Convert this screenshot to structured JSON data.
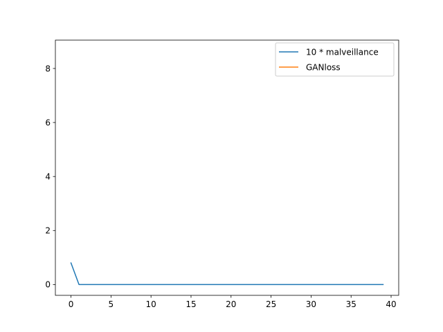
{
  "chart_data": {
    "type": "line",
    "title": "",
    "xlabel": "",
    "ylabel": "",
    "xlim": [
      -1.95,
      40.95
    ],
    "ylim": [
      -0.4,
      9.05
    ],
    "x_ticks": [
      0,
      5,
      10,
      15,
      20,
      25,
      30,
      35,
      40
    ],
    "y_ticks": [
      0,
      2,
      4,
      6,
      8
    ],
    "grid": false,
    "legend_position": "top-right",
    "series": [
      {
        "name": "10 * malveillance",
        "color": "#1f77b4",
        "x": [
          0,
          1,
          2,
          3,
          4,
          5,
          6,
          7,
          8,
          9,
          10,
          11,
          12,
          13,
          14,
          15,
          16,
          17,
          18,
          19,
          20,
          21,
          22,
          23,
          24,
          25,
          26,
          27,
          28,
          29,
          30,
          31,
          32,
          33,
          34,
          35,
          36,
          37,
          38,
          39
        ],
        "y": [
          0.8,
          0,
          0,
          0,
          0,
          0,
          0,
          0,
          0,
          0,
          0,
          0,
          0,
          0,
          0,
          0,
          0,
          0,
          0,
          0,
          0,
          0,
          0,
          0,
          0,
          0,
          0,
          0,
          0,
          0,
          0,
          0,
          0,
          0,
          0,
          0,
          0,
          0,
          0,
          0
        ]
      },
      {
        "name": "GANloss",
        "color": "#ff7f0e",
        "x": [],
        "y": []
      }
    ]
  }
}
